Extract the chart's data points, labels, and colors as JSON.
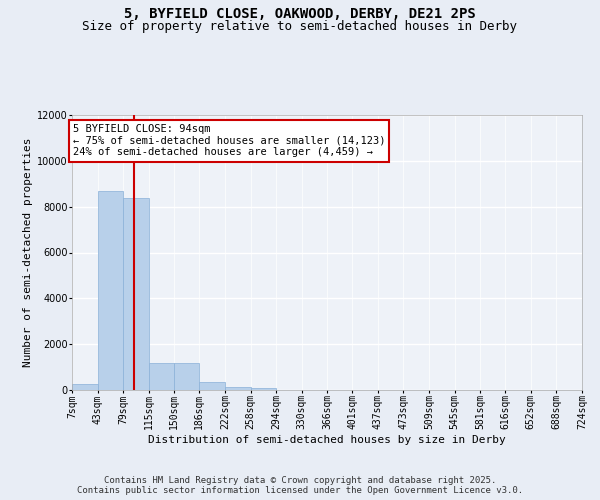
{
  "title_line1": "5, BYFIELD CLOSE, OAKWOOD, DERBY, DE21 2PS",
  "title_line2": "Size of property relative to semi-detached houses in Derby",
  "xlabel": "Distribution of semi-detached houses by size in Derby",
  "ylabel": "Number of semi-detached properties",
  "bins": [
    7,
    43,
    79,
    115,
    150,
    186,
    222,
    258,
    294,
    330,
    366,
    401,
    437,
    473,
    509,
    545,
    581,
    616,
    652,
    688,
    724
  ],
  "counts": [
    250,
    8700,
    8400,
    1200,
    1200,
    350,
    150,
    100,
    0,
    0,
    0,
    0,
    0,
    0,
    0,
    0,
    0,
    0,
    0,
    0
  ],
  "bar_color": "#b8d0ea",
  "bar_edge_color": "#8ab0d8",
  "marker_value": 94,
  "marker_color": "#cc0000",
  "ylim": [
    0,
    12000
  ],
  "yticks": [
    0,
    2000,
    4000,
    6000,
    8000,
    10000,
    12000
  ],
  "annotation_title": "5 BYFIELD CLOSE: 94sqm",
  "annotation_line2": "← 75% of semi-detached houses are smaller (14,123)",
  "annotation_line3": "24% of semi-detached houses are larger (4,459) →",
  "annotation_box_color": "#ffffff",
  "annotation_box_edge": "#cc0000",
  "footer_line1": "Contains HM Land Registry data © Crown copyright and database right 2025.",
  "footer_line2": "Contains public sector information licensed under the Open Government Licence v3.0.",
  "bg_color": "#e8edf5",
  "plot_bg_color": "#eef2f8",
  "grid_color": "#ffffff",
  "title_fontsize": 10,
  "subtitle_fontsize": 9,
  "tick_fontsize": 7,
  "ylabel_fontsize": 8,
  "xlabel_fontsize": 8,
  "footer_fontsize": 6.5,
  "annotation_fontsize": 7.5
}
